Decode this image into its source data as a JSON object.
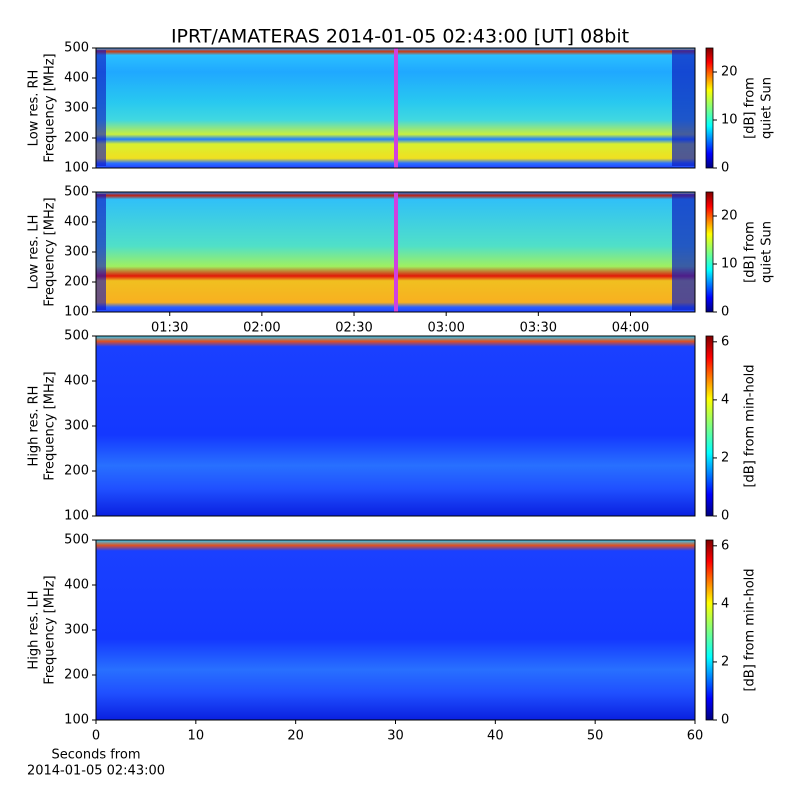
{
  "title": "IPRT/AMATERAS 2014-01-05 02:43:00 [UT]   08bit",
  "chart_data": [
    {
      "type": "spectrogram",
      "ylabel": [
        "Low res. RH",
        "Frequency [MHz]"
      ],
      "ylim": [
        100,
        500
      ],
      "yticks": [
        100,
        200,
        300,
        400,
        500
      ],
      "colorbar_label": [
        "[dB] from",
        "quiet Sun"
      ],
      "clim": [
        0,
        25
      ],
      "cticks": [
        0,
        10,
        20
      ],
      "colormap": "jet"
    },
    {
      "type": "spectrogram",
      "ylabel": [
        "Low res. LH",
        "Frequency [MHz]"
      ],
      "ylim": [
        100,
        500
      ],
      "yticks": [
        100,
        200,
        300,
        400,
        500
      ],
      "xlim": [
        "01:06",
        "04:21"
      ],
      "xticks": [
        "01:30",
        "02:00",
        "02:30",
        "03:00",
        "03:30",
        "04:00"
      ],
      "colorbar_label": [
        "[dB] from",
        "quiet Sun"
      ],
      "clim": [
        0,
        25
      ],
      "cticks": [
        0,
        10,
        20
      ],
      "colormap": "jet"
    },
    {
      "type": "spectrogram",
      "ylabel": [
        "High res. RH",
        "Frequency [MHz]"
      ],
      "ylim": [
        100,
        500
      ],
      "yticks": [
        100,
        200,
        300,
        400,
        500
      ],
      "colorbar_label": [
        "[dB] from min-hold"
      ],
      "clim": [
        0,
        6.2
      ],
      "cticks": [
        0,
        2,
        4,
        6
      ],
      "colormap": "jet"
    },
    {
      "type": "spectrogram",
      "ylabel": [
        "High res. LH",
        "Frequency [MHz]"
      ],
      "ylim": [
        100,
        500
      ],
      "yticks": [
        100,
        200,
        300,
        400,
        500
      ],
      "xlim": [
        0,
        60
      ],
      "xticks": [
        0,
        10,
        20,
        30,
        40,
        50,
        60
      ],
      "xlabel": [
        "Seconds from",
        "2014-01-05 02:43:00"
      ],
      "colorbar_label": [
        "[dB] from min-hold"
      ],
      "clim": [
        0,
        6.2
      ],
      "cticks": [
        0,
        2,
        4,
        6
      ],
      "colormap": "jet"
    }
  ]
}
